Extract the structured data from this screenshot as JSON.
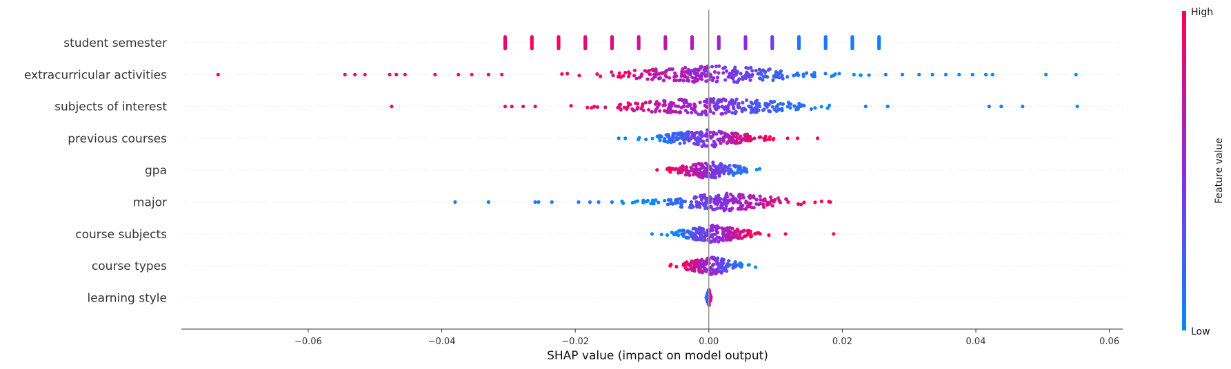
{
  "chart_data": {
    "type": "scatter",
    "subtype": "shap-beeswarm",
    "xlabel": "SHAP value (impact on model output)",
    "xlim": [
      -0.079,
      0.062
    ],
    "xticks": [
      -0.06,
      -0.04,
      -0.02,
      0.0,
      0.02,
      0.04,
      0.06
    ],
    "xtick_labels": [
      "−0.06",
      "−0.04",
      "−0.02",
      "0.00",
      "0.02",
      "0.04",
      "0.06"
    ],
    "zero_line": true,
    "row_gridlines": "dotted",
    "colorbar": {
      "title": "Feature value",
      "high_label": "High",
      "low_label": "Low",
      "high_color": "#ff0052",
      "mid_color": "#8a2be2",
      "low_color": "#008bfb"
    },
    "features": [
      {
        "name": "student semester",
        "discrete": true,
        "points": [
          {
            "x": -0.0305,
            "v": 0.93
          },
          {
            "x": -0.0265,
            "v": 0.98
          },
          {
            "x": -0.0225,
            "v": 0.95
          },
          {
            "x": -0.0185,
            "v": 0.9
          },
          {
            "x": -0.0145,
            "v": 0.85
          },
          {
            "x": -0.0105,
            "v": 0.78
          },
          {
            "x": -0.0065,
            "v": 0.72
          },
          {
            "x": -0.0025,
            "v": 0.65
          },
          {
            "x": 0.0015,
            "v": 0.58
          },
          {
            "x": 0.0055,
            "v": 0.5
          },
          {
            "x": 0.0095,
            "v": 0.4
          },
          {
            "x": 0.0135,
            "v": 0.12
          },
          {
            "x": 0.0175,
            "v": 0.1
          },
          {
            "x": 0.0215,
            "v": 0.08
          },
          {
            "x": 0.0255,
            "v": 0.05
          }
        ]
      },
      {
        "name": "extracurricular activities",
        "range": [
          -0.022,
          0.024
        ],
        "direction": -1,
        "density": 1.0,
        "outliers": [
          {
            "x": -0.0735,
            "v": 1.0
          },
          {
            "x": -0.0545,
            "v": 0.96
          },
          {
            "x": -0.053,
            "v": 0.95
          },
          {
            "x": -0.0515,
            "v": 0.95
          },
          {
            "x": -0.0478,
            "v": 0.93
          },
          {
            "x": -0.0468,
            "v": 0.92
          },
          {
            "x": -0.0455,
            "v": 0.92
          },
          {
            "x": -0.041,
            "v": 0.9
          },
          {
            "x": -0.0375,
            "v": 0.88
          },
          {
            "x": -0.0355,
            "v": 0.87
          },
          {
            "x": -0.033,
            "v": 0.86
          },
          {
            "x": -0.031,
            "v": 0.85
          },
          {
            "x": 0.0265,
            "v": 0.12
          },
          {
            "x": 0.029,
            "v": 0.1
          },
          {
            "x": 0.0315,
            "v": 0.08
          },
          {
            "x": 0.0335,
            "v": 0.06
          },
          {
            "x": 0.0355,
            "v": 0.05
          },
          {
            "x": 0.0375,
            "v": 0.05
          },
          {
            "x": 0.0395,
            "v": 0.04
          },
          {
            "x": 0.0415,
            "v": 0.03
          },
          {
            "x": 0.0425,
            "v": 0.03
          },
          {
            "x": 0.0505,
            "v": 0.02
          },
          {
            "x": 0.055,
            "v": 0.0
          }
        ]
      },
      {
        "name": "subjects of interest",
        "range": [
          -0.022,
          0.022
        ],
        "direction": -1,
        "density": 1.0,
        "outliers": [
          {
            "x": -0.0475,
            "v": 0.95
          },
          {
            "x": -0.0305,
            "v": 0.9
          },
          {
            "x": -0.0295,
            "v": 0.9
          },
          {
            "x": -0.0278,
            "v": 0.88
          },
          {
            "x": -0.026,
            "v": 0.88
          },
          {
            "x": 0.0235,
            "v": 0.1
          },
          {
            "x": 0.0268,
            "v": 0.08
          },
          {
            "x": 0.042,
            "v": 0.04
          },
          {
            "x": 0.0438,
            "v": 0.04
          },
          {
            "x": 0.047,
            "v": 0.03
          },
          {
            "x": 0.0552,
            "v": 0.0
          }
        ]
      },
      {
        "name": "previous courses",
        "range": [
          -0.011,
          0.011
        ],
        "direction": 1,
        "density": 0.75,
        "outliers": [
          {
            "x": -0.0135,
            "v": 0.05
          },
          {
            "x": -0.0125,
            "v": 0.08
          },
          {
            "x": 0.0118,
            "v": 0.9
          },
          {
            "x": 0.0133,
            "v": 0.93
          },
          {
            "x": 0.0163,
            "v": 0.95
          }
        ]
      },
      {
        "name": "gpa",
        "range": [
          -0.008,
          0.0082
        ],
        "direction": -1,
        "density": 0.7,
        "outliers": []
      },
      {
        "name": "major",
        "range": [
          -0.013,
          0.018
        ],
        "direction": 1,
        "density": 0.8,
        "outliers": [
          {
            "x": -0.038,
            "v": 0.05
          },
          {
            "x": -0.033,
            "v": 0.06
          },
          {
            "x": -0.026,
            "v": 0.08
          },
          {
            "x": -0.0255,
            "v": 0.08
          },
          {
            "x": -0.0235,
            "v": 0.1
          },
          {
            "x": -0.0195,
            "v": 0.1
          },
          {
            "x": -0.0178,
            "v": 0.12
          },
          {
            "x": -0.0165,
            "v": 0.12
          },
          {
            "x": -0.0145,
            "v": 0.15
          },
          {
            "x": 0.0182,
            "v": 0.95
          }
        ]
      },
      {
        "name": "course subjects",
        "range": [
          -0.0075,
          0.009
        ],
        "direction": 1,
        "density": 0.75,
        "outliers": [
          {
            "x": -0.0085,
            "v": 0.05
          },
          {
            "x": 0.0115,
            "v": 0.92
          },
          {
            "x": 0.0187,
            "v": 0.97
          }
        ]
      },
      {
        "name": "course types",
        "range": [
          -0.006,
          0.007
        ],
        "direction": -1,
        "density": 0.6,
        "outliers": []
      },
      {
        "name": "learning style",
        "range": [
          -0.0004,
          0.0004
        ],
        "direction": 1,
        "density": 0.35,
        "outliers": []
      }
    ]
  }
}
